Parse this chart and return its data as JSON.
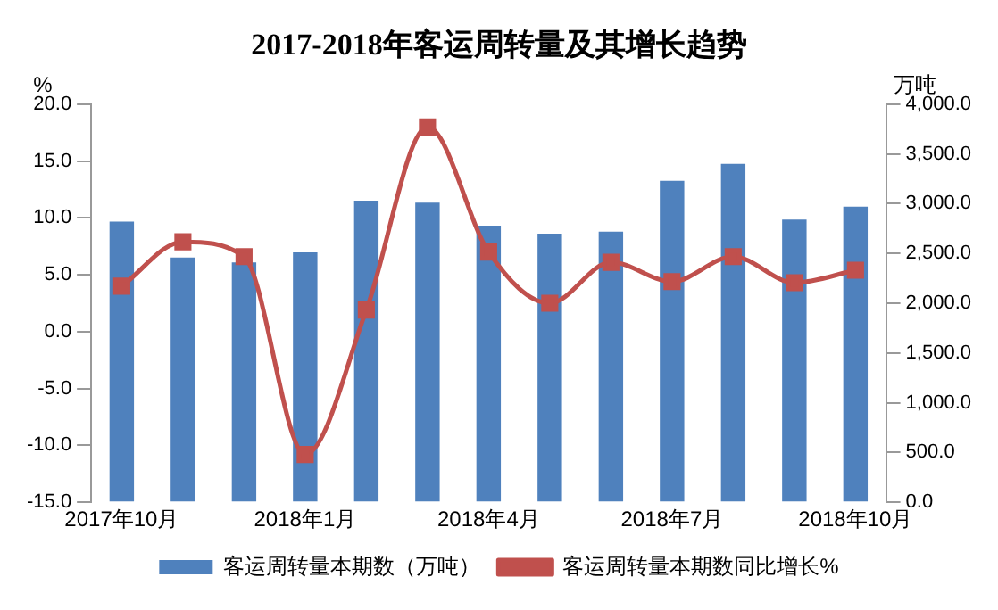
{
  "chart_data": {
    "type": "bar",
    "title": "2017-2018年客运周转量及其增长趋势",
    "ylabel": "%",
    "y2label": "万吨",
    "categories": [
      "2017年10月",
      null,
      null,
      "2018年1月",
      null,
      null,
      "2018年4月",
      null,
      null,
      "2018年7月",
      null,
      null,
      "2018年10月"
    ],
    "series": [
      {
        "name": "客运周转量本期数（万吨）",
        "axis": "y2",
        "color": "#4f81bd",
        "values": [
          2820,
          2460,
          2410,
          2510,
          3030,
          3010,
          2780,
          2700,
          2720,
          3230,
          3400,
          2840,
          2970
        ]
      },
      {
        "name": "客运周转量本期数同比增长%",
        "type": "line",
        "axis": "y",
        "color": "#c0504d",
        "marker": "square",
        "values": [
          4.0,
          7.9,
          6.6,
          -10.8,
          1.9,
          18.0,
          7.0,
          2.5,
          6.1,
          4.4,
          6.6,
          4.3,
          5.4
        ]
      }
    ],
    "ylim": [
      -15,
      20
    ],
    "yticks": [
      {
        "value": -15,
        "label": "-15.0"
      },
      {
        "value": -10,
        "label": "-10.0"
      },
      {
        "value": -5,
        "label": "-5.0"
      },
      {
        "value": 0,
        "label": "0.0"
      },
      {
        "value": 5,
        "label": "5.0"
      },
      {
        "value": 10,
        "label": "10.0"
      },
      {
        "value": 15,
        "label": "15.0"
      },
      {
        "value": 20,
        "label": "20.0"
      }
    ],
    "y2lim": [
      0,
      4000
    ],
    "y2ticks": [
      {
        "value": 0,
        "label": "0.0"
      },
      {
        "value": 500,
        "label": "500.0"
      },
      {
        "value": 1000,
        "label": "1,000.0"
      },
      {
        "value": 1500,
        "label": "1,500.0"
      },
      {
        "value": 2000,
        "label": "2,000.0"
      },
      {
        "value": 2500,
        "label": "2,500.0"
      },
      {
        "value": 3000,
        "label": "3,000.0"
      },
      {
        "value": 3500,
        "label": "3,500.0"
      },
      {
        "value": 4000,
        "label": "4,000.0"
      }
    ],
    "grid": false,
    "legend": "bottom"
  }
}
